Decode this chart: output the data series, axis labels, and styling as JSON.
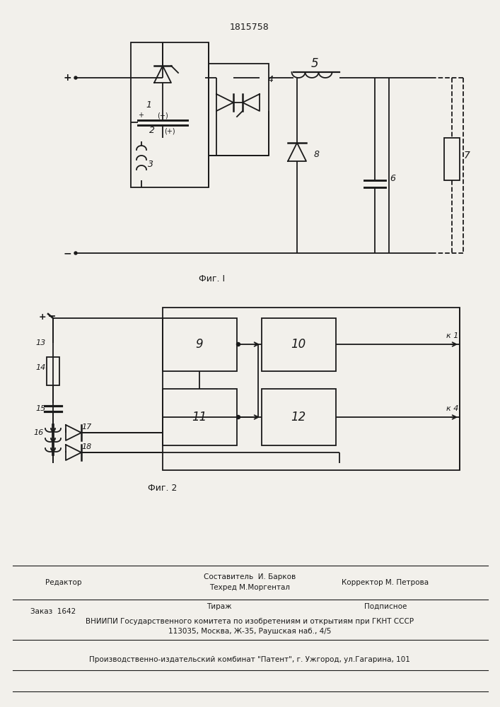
{
  "patent_number": "1815758",
  "fig1_label": "Фиг. I",
  "fig2_label": "Фиг. 2",
  "bg_color": "#f2f0eb",
  "line_color": "#1a1a1a",
  "footer_lines": [
    "Составитель  И. Барков",
    "Техред М.Моргентал",
    "Редактор",
    "Корректор М. Петрова",
    "Заказ  1642",
    "Тираж",
    "Подписное",
    "ВНИИПИ Государственного комитета по изобретениям и открытиям при ГКНТ СССР",
    "113035, Москва, Ж-35, Раушская наб., 4/5",
    "Производственно-издательский комбинат \"Патент\", г. Ужгород, ул.Гагарина, 101"
  ]
}
